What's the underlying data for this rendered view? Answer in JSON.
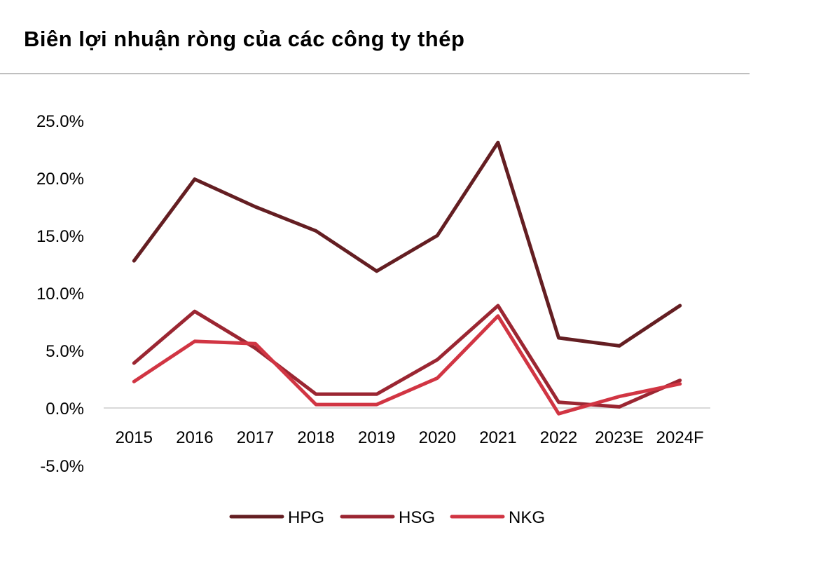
{
  "title": "Biên lợi nhuận ròng của các công ty thép",
  "chart_data": {
    "type": "line",
    "categories": [
      "2015",
      "2016",
      "2017",
      "2018",
      "2019",
      "2020",
      "2021",
      "2022",
      "2023E",
      "2024F"
    ],
    "series": [
      {
        "name": "HPG",
        "color": "#641e22",
        "values": [
          12.8,
          19.9,
          17.5,
          15.4,
          11.9,
          15.0,
          23.1,
          6.1,
          5.4,
          8.9
        ]
      },
      {
        "name": "HSG",
        "color": "#9b2632",
        "values": [
          3.9,
          8.4,
          5.2,
          1.2,
          1.2,
          4.2,
          8.9,
          0.5,
          0.1,
          2.4
        ]
      },
      {
        "name": "NKG",
        "color": "#d13543",
        "values": [
          2.3,
          5.8,
          5.6,
          0.3,
          0.3,
          2.6,
          8.0,
          -0.5,
          1.0,
          2.1
        ]
      }
    ],
    "yticks": [
      "25.0%",
      "20.0%",
      "15.0%",
      "10.0%",
      "5.0%",
      "0.0%",
      "-5.0%"
    ],
    "ytick_values": [
      25,
      20,
      15,
      10,
      5,
      0,
      -5
    ],
    "ylim": [
      -5,
      25
    ],
    "xlabel": "",
    "ylabel": "",
    "legend_position": "bottom"
  }
}
